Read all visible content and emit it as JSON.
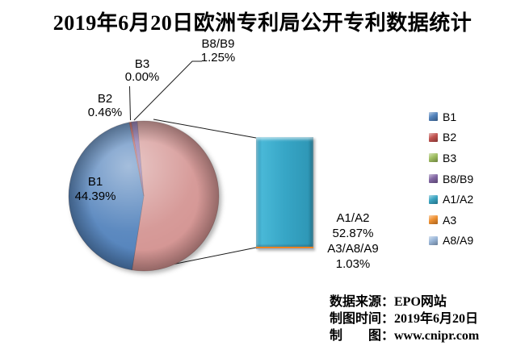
{
  "title": "2019年6月20日欧洲专利局公开专利数据统计",
  "chart_data": {
    "type": "pie",
    "variant": "bar-of-pie",
    "title": "2019年6月20日欧洲专利局公开专利数据统计",
    "unit": "percent",
    "pie_slices": [
      {
        "label": "A1/A2 + A3/A8/A9",
        "pct": 53.9,
        "color": "#D2908E",
        "expanded_to_bar": true
      },
      {
        "label": "B1",
        "pct": 44.39,
        "color": "#4B7DB9"
      },
      {
        "label": "B2",
        "pct": 0.46,
        "color": "#BE4B48"
      },
      {
        "label": "B3",
        "pct": 0.0,
        "color": "#9BBB59"
      },
      {
        "label": "B8/B9",
        "pct": 1.25,
        "color": "#7D60A0"
      }
    ],
    "bar_segments": [
      {
        "label": "A1/A2",
        "pct": 52.87,
        "color": "#31A0BF"
      },
      {
        "label": "A3/A8/A9",
        "pct": 1.03,
        "color": "#EE8322",
        "color2": "#95B3D7"
      }
    ],
    "legend_position": "right",
    "grid": false
  },
  "callouts": {
    "b1": {
      "label": "B1",
      "pct": "44.39%"
    },
    "b2": {
      "label": "B2",
      "pct": "0.46%"
    },
    "b3": {
      "label": "B3",
      "pct": "0.00%"
    },
    "b8b9": {
      "label": "B8/B9",
      "pct": "1.25%"
    },
    "a1a2": {
      "label": "A1/A2",
      "pct": "52.87%"
    },
    "a3a8a9": {
      "label": "A3/A8/A9",
      "pct": "1.03%"
    }
  },
  "legend": {
    "items": [
      {
        "label": "B1",
        "color": "#4B7DB9"
      },
      {
        "label": "B2",
        "color": "#BE4B48"
      },
      {
        "label": "B3",
        "color": "#9BBB59"
      },
      {
        "label": "B8/B9",
        "color": "#7D60A0"
      },
      {
        "label": "A1/A2",
        "color": "#31A0BF"
      },
      {
        "label": "A3",
        "color": "#EF8C28"
      },
      {
        "label": "A8/A9",
        "color": "#95B3D7"
      }
    ]
  },
  "footer": {
    "source": "数据来源：EPO网站",
    "date": "制图时间：2019年6月20日",
    "credit": "制　　图：www.cnipr.com"
  }
}
